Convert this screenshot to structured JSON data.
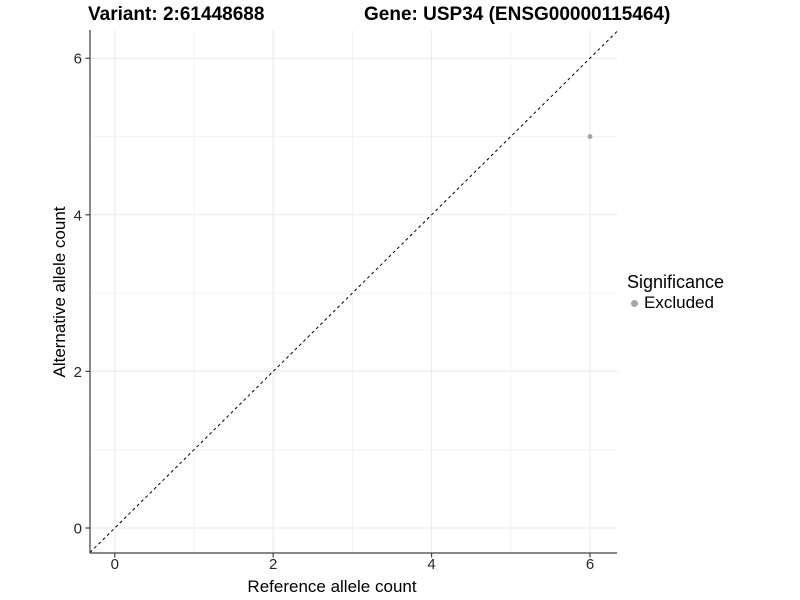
{
  "chart_data": {
    "type": "scatter",
    "titles": {
      "left": "Variant: 2:61448688",
      "right": "Gene: USP34 (ENSG00000115464)"
    },
    "x_axis": {
      "label": "Reference allele count",
      "ticks": [
        0,
        2,
        4,
        6
      ],
      "minor_ticks": [
        1,
        3,
        5
      ],
      "range": [
        -0.32,
        6.34
      ]
    },
    "y_axis": {
      "label": "Alternative allele count",
      "ticks": [
        0,
        2,
        4,
        6
      ],
      "minor_ticks": [
        1,
        3,
        5
      ],
      "range": [
        -0.32,
        6.36
      ]
    },
    "points": [
      {
        "x": 6,
        "y": 5,
        "significance": "Excluded",
        "color": "#a6a6a6"
      }
    ],
    "identity_line": {
      "equation": "y = x",
      "style": "dashed",
      "color": "#000000"
    },
    "legend": {
      "title": "Significance",
      "position": "right",
      "items": [
        {
          "label": "Excluded",
          "color": "#a6a6a6"
        }
      ]
    },
    "style": {
      "background": "#ffffff",
      "grid_major_color": "#e9e9e9",
      "grid_minor_color": "#f3f3f3",
      "axis_line_color": "#404040",
      "tick_label_color": "#262626",
      "text_color": "#000000"
    }
  }
}
